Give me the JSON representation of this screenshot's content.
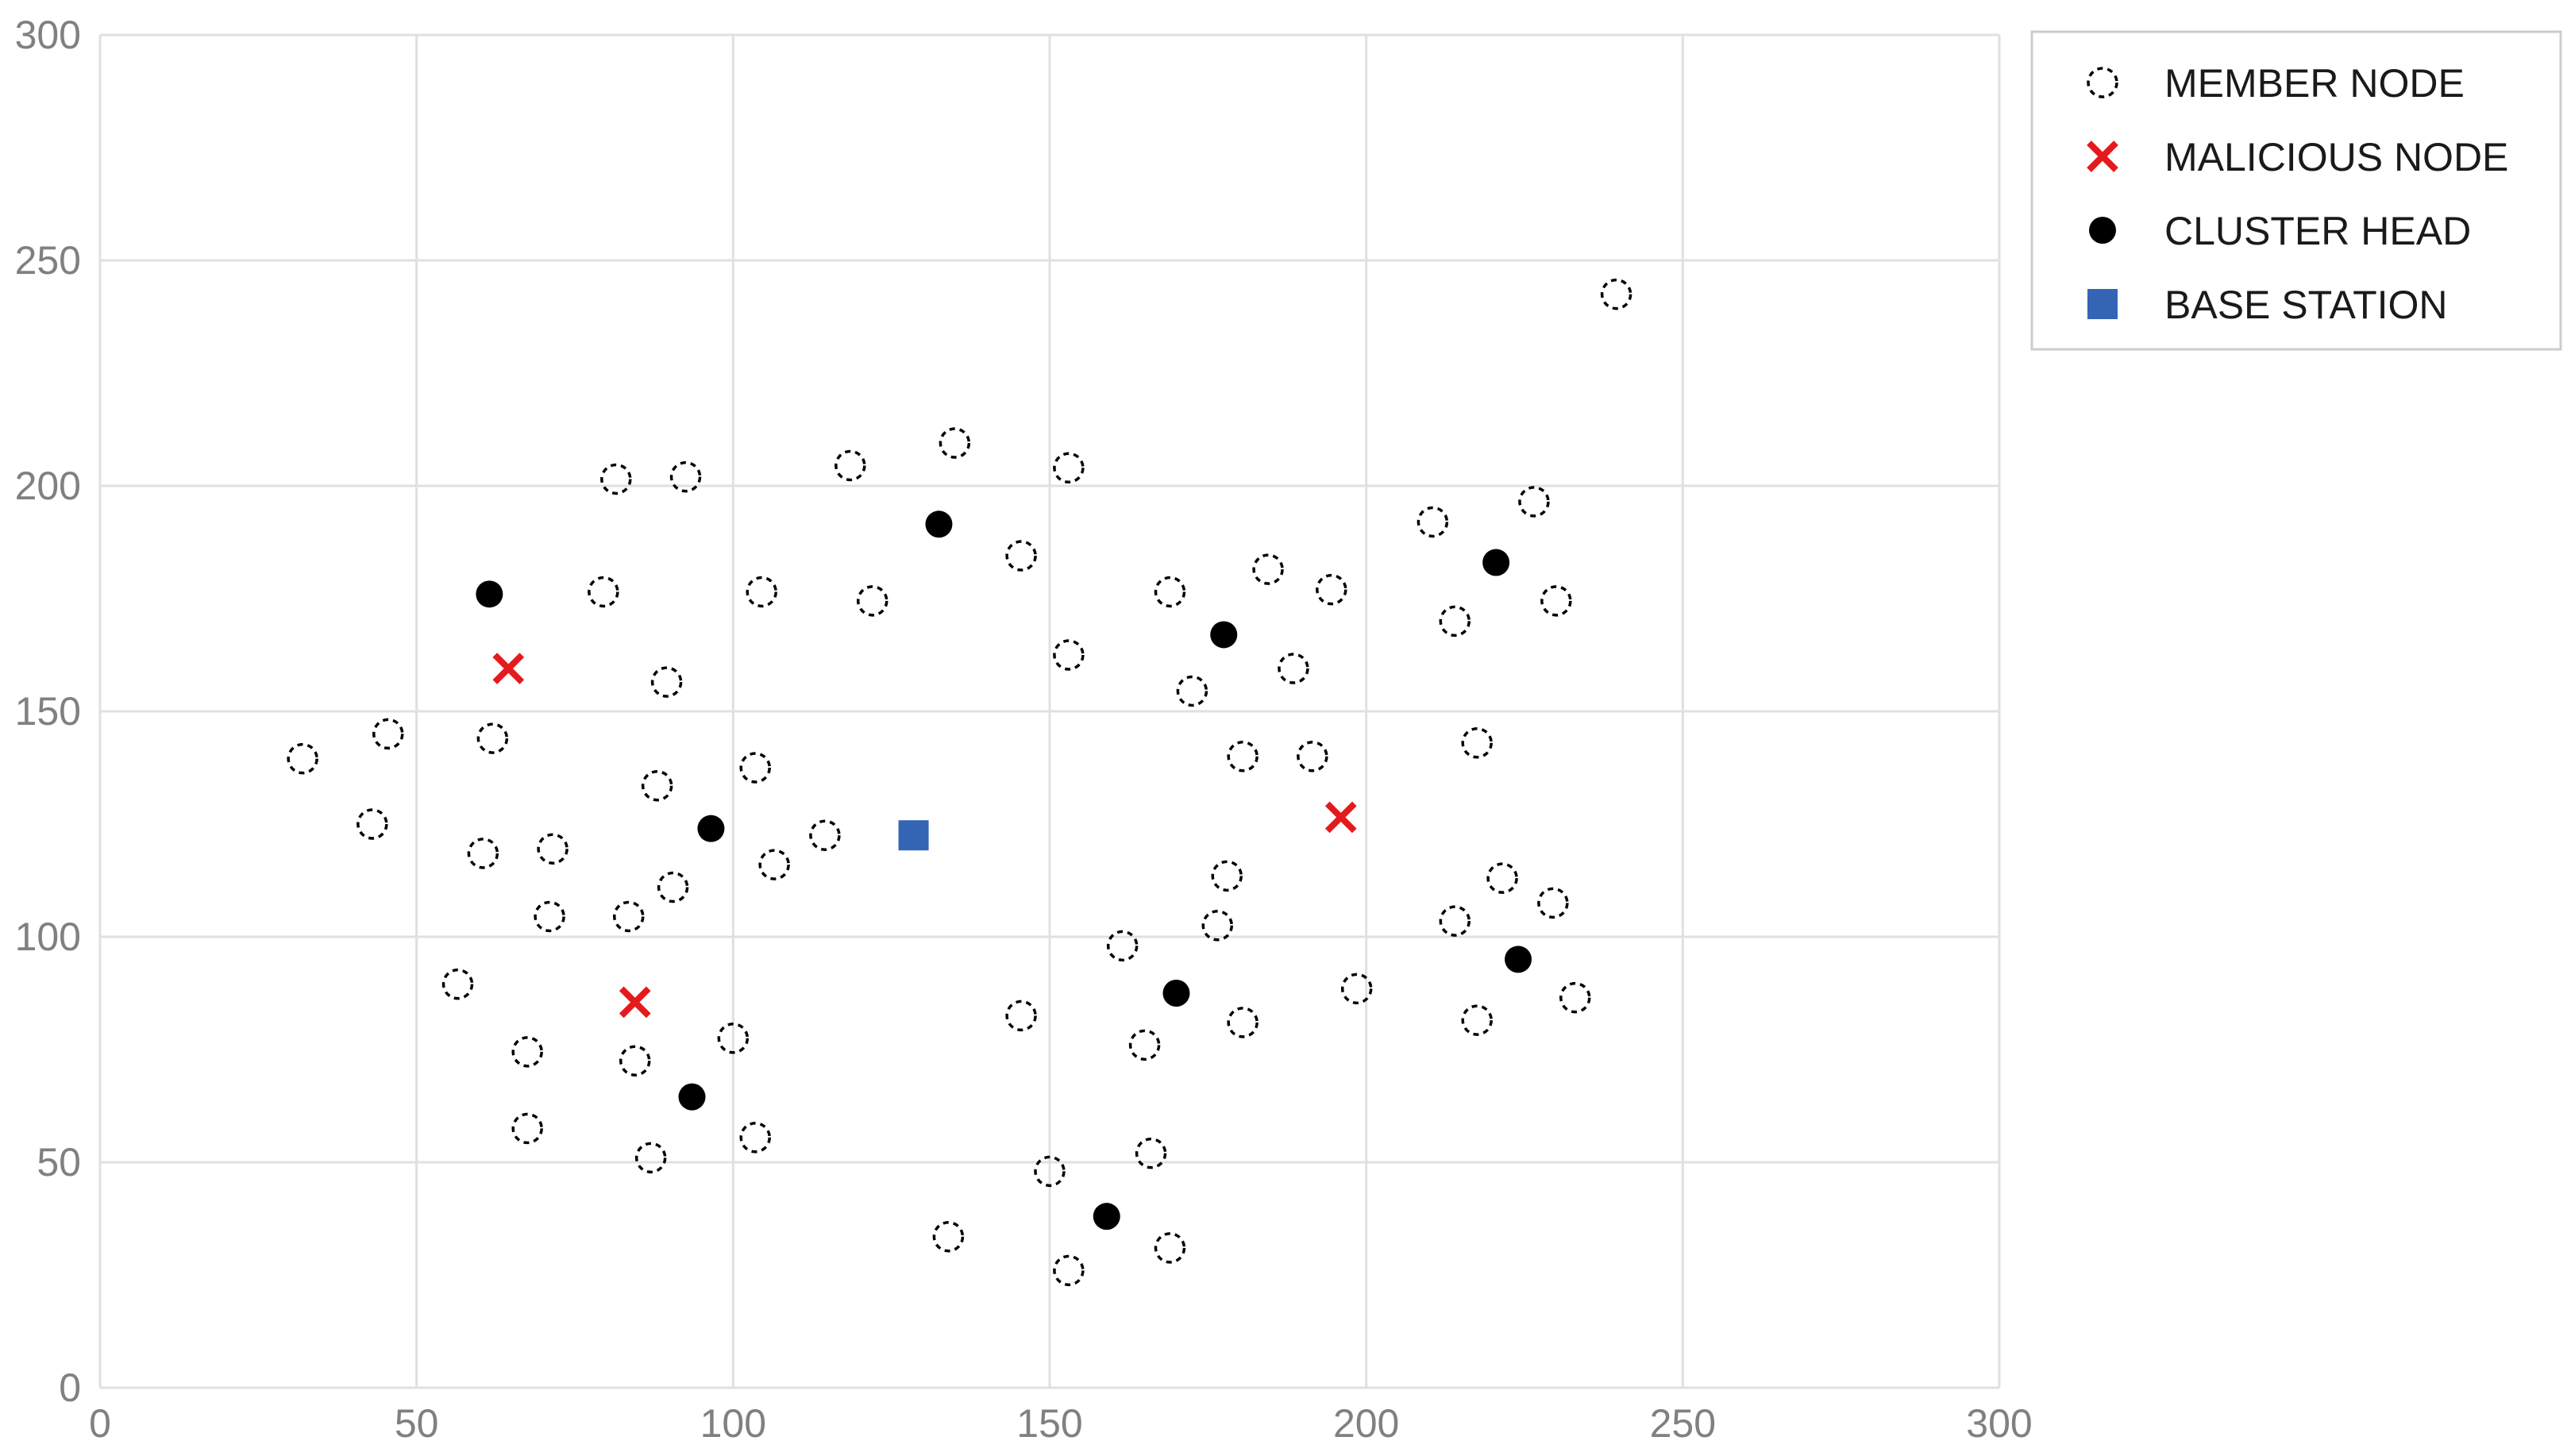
{
  "chart_data": {
    "type": "scatter",
    "title": "",
    "xlabel": "",
    "ylabel": "",
    "xlim": [
      0,
      300
    ],
    "ylim": [
      0,
      300
    ],
    "x_ticks": [
      "0",
      "50",
      "100",
      "150",
      "200",
      "250",
      "300"
    ],
    "y_ticks": [
      "0",
      "50",
      "100",
      "150",
      "200",
      "250",
      "300"
    ],
    "grid": true,
    "legend_position": "top-right outside",
    "series": [
      {
        "name": "MEMBER NODE",
        "marker": "dashed-circle",
        "color": "#000000",
        "points": [
          [
            239.5,
            242.5
          ],
          [
            32,
            139.5
          ],
          [
            43,
            125
          ],
          [
            45.5,
            145
          ],
          [
            56.5,
            89.5
          ],
          [
            60.5,
            118.5
          ],
          [
            62,
            144
          ],
          [
            67.5,
            57.5
          ],
          [
            67.5,
            74.5
          ],
          [
            71,
            104.5
          ],
          [
            71.5,
            119.5
          ],
          [
            79.5,
            176.5
          ],
          [
            81.5,
            201.5
          ],
          [
            83.5,
            104.5
          ],
          [
            84.5,
            72.5
          ],
          [
            87,
            51
          ],
          [
            88,
            133.5
          ],
          [
            89.5,
            156.5
          ],
          [
            90.5,
            111
          ],
          [
            92.5,
            202
          ],
          [
            100,
            77.5
          ],
          [
            103.5,
            55.5
          ],
          [
            103.5,
            137.5
          ],
          [
            104.5,
            176.5
          ],
          [
            106.5,
            116
          ],
          [
            114.5,
            122.5
          ],
          [
            118.5,
            204.5
          ],
          [
            122,
            174.5
          ],
          [
            134,
            33.5
          ],
          [
            135,
            209.5
          ],
          [
            145.5,
            82.5
          ],
          [
            145.5,
            184.5
          ],
          [
            150,
            48
          ],
          [
            153,
            26
          ],
          [
            153,
            162.5
          ],
          [
            153,
            204
          ],
          [
            161.5,
            98
          ],
          [
            165,
            76
          ],
          [
            166,
            52
          ],
          [
            169,
            176.5
          ],
          [
            169,
            31
          ],
          [
            172.5,
            154.5
          ],
          [
            176.5,
            102.5
          ],
          [
            178,
            113.5
          ],
          [
            180.5,
            81
          ],
          [
            180.5,
            140
          ],
          [
            184.5,
            181.5
          ],
          [
            188.5,
            159.5
          ],
          [
            191.5,
            140
          ],
          [
            194.5,
            177
          ],
          [
            198.5,
            88.5
          ],
          [
            210.5,
            192
          ],
          [
            214,
            103.5
          ],
          [
            214,
            170
          ],
          [
            217.5,
            143
          ],
          [
            217.5,
            81.5
          ],
          [
            221.5,
            113
          ],
          [
            226.5,
            196.5
          ],
          [
            229.5,
            107.5
          ],
          [
            230,
            174.5
          ],
          [
            233,
            86.5
          ]
        ]
      },
      {
        "name": "MALICIOUS NODE",
        "marker": "cross",
        "color": "#e41a1c",
        "points": [
          [
            64.5,
            159.5
          ],
          [
            84.5,
            85.5
          ],
          [
            196,
            126.5
          ]
        ]
      },
      {
        "name": "CLUSTER HEAD",
        "marker": "filled-circle",
        "color": "#000000",
        "points": [
          [
            61.5,
            176
          ],
          [
            93.5,
            64.5
          ],
          [
            96.5,
            124
          ],
          [
            132.5,
            191.5
          ],
          [
            159,
            38
          ],
          [
            170,
            87.5
          ],
          [
            177.5,
            167
          ],
          [
            220.5,
            183
          ],
          [
            224,
            95
          ]
        ]
      },
      {
        "name": "BASE STATION",
        "marker": "square",
        "color": "#3465b5",
        "points": [
          [
            128.5,
            122.5
          ]
        ]
      }
    ]
  }
}
